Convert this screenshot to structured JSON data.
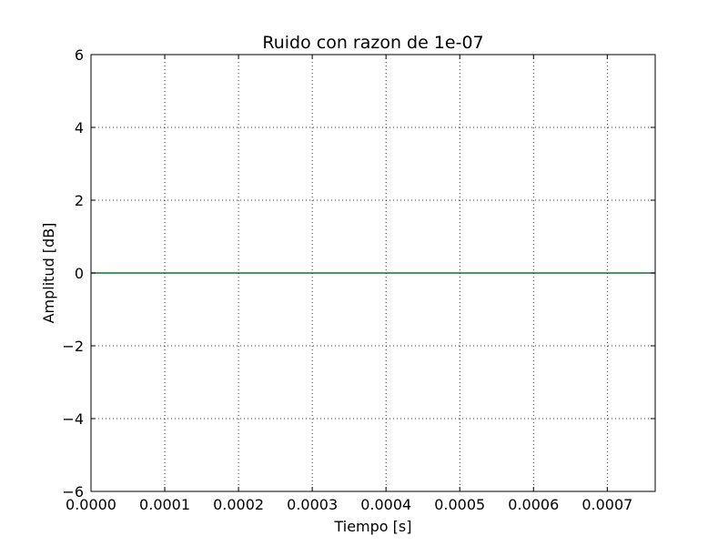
{
  "chart_data": {
    "type": "line",
    "title": "Ruido con razon de 1e-07",
    "xlabel": "Tiempo [s]",
    "ylabel": "Amplitud [dB]",
    "xlim": [
      0,
      0.000765
    ],
    "ylim": [
      -6,
      6
    ],
    "grid": true,
    "x_ticks": [
      0.0,
      0.0001,
      0.0002,
      0.0003,
      0.0004,
      0.0005,
      0.0006,
      0.0007
    ],
    "x_tick_labels": [
      "0.0000",
      "0.0001",
      "0.0002",
      "0.0003",
      "0.0004",
      "0.0005",
      "0.0006",
      "0.0007"
    ],
    "y_ticks": [
      -6,
      -4,
      -2,
      0,
      2,
      4,
      6
    ],
    "y_tick_labels": [
      "−6",
      "−4",
      "−2",
      "0",
      "2",
      "4",
      "6"
    ],
    "series": [
      {
        "color": "#0000ff",
        "x": [
          0,
          0.000765
        ],
        "y": [
          0,
          0
        ]
      },
      {
        "color": "#008000",
        "x": [
          0,
          0.000765
        ],
        "y": [
          0,
          0
        ]
      }
    ]
  }
}
